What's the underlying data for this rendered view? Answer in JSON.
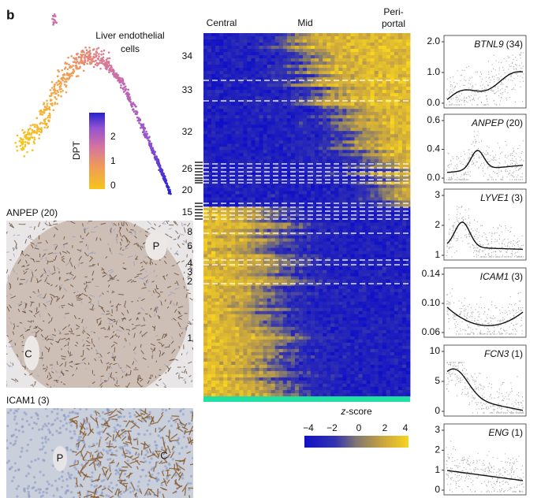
{
  "panel_label": "b",
  "trajectory": {
    "title_lines": [
      "Liver endothelial",
      "cells"
    ],
    "colorbar_label": "DPT",
    "colorbar_ticks": [
      "2",
      "1",
      "0"
    ]
  },
  "images": [
    {
      "label": "ANPEP (20)",
      "markers": [
        "P",
        "C"
      ]
    },
    {
      "label": "ICAM1 (3)",
      "markers": [
        "P",
        "C"
      ]
    }
  ],
  "heatmap": {
    "column_labels": [
      "Central",
      "Mid"
    ],
    "periportal_lines": [
      "Peri-",
      "portal"
    ],
    "row_labels": [
      "34",
      "33",
      "32",
      "26",
      "20",
      "15",
      "8",
      "6",
      "4",
      "3",
      "2",
      "1"
    ],
    "zscore_label": [
      "z",
      "-score"
    ],
    "zscore_ticks": [
      "−4",
      "−2",
      "0",
      "2",
      "4"
    ]
  },
  "gene_panels": [
    {
      "gene": "BTNL9",
      "count": "(34)",
      "yticks": [
        "2.0",
        "1.0",
        "0.0"
      ]
    },
    {
      "gene": "ANPEP",
      "count": "(20)",
      "yticks": [
        "0.6",
        "0.4",
        "0.0"
      ]
    },
    {
      "gene": "LYVE1",
      "count": "(3)",
      "yticks": [
        "3",
        "2",
        "1"
      ]
    },
    {
      "gene": "ICAM1",
      "count": "(3)",
      "yticks": [
        "0.14",
        "0.10",
        "0.06"
      ]
    },
    {
      "gene": "FCN3",
      "count": "(1)",
      "yticks": [
        "10",
        "5",
        "0"
      ]
    },
    {
      "gene": "ENG",
      "count": "(1)",
      "yticks": [
        "3",
        "2",
        "1",
        "0"
      ]
    }
  ]
}
